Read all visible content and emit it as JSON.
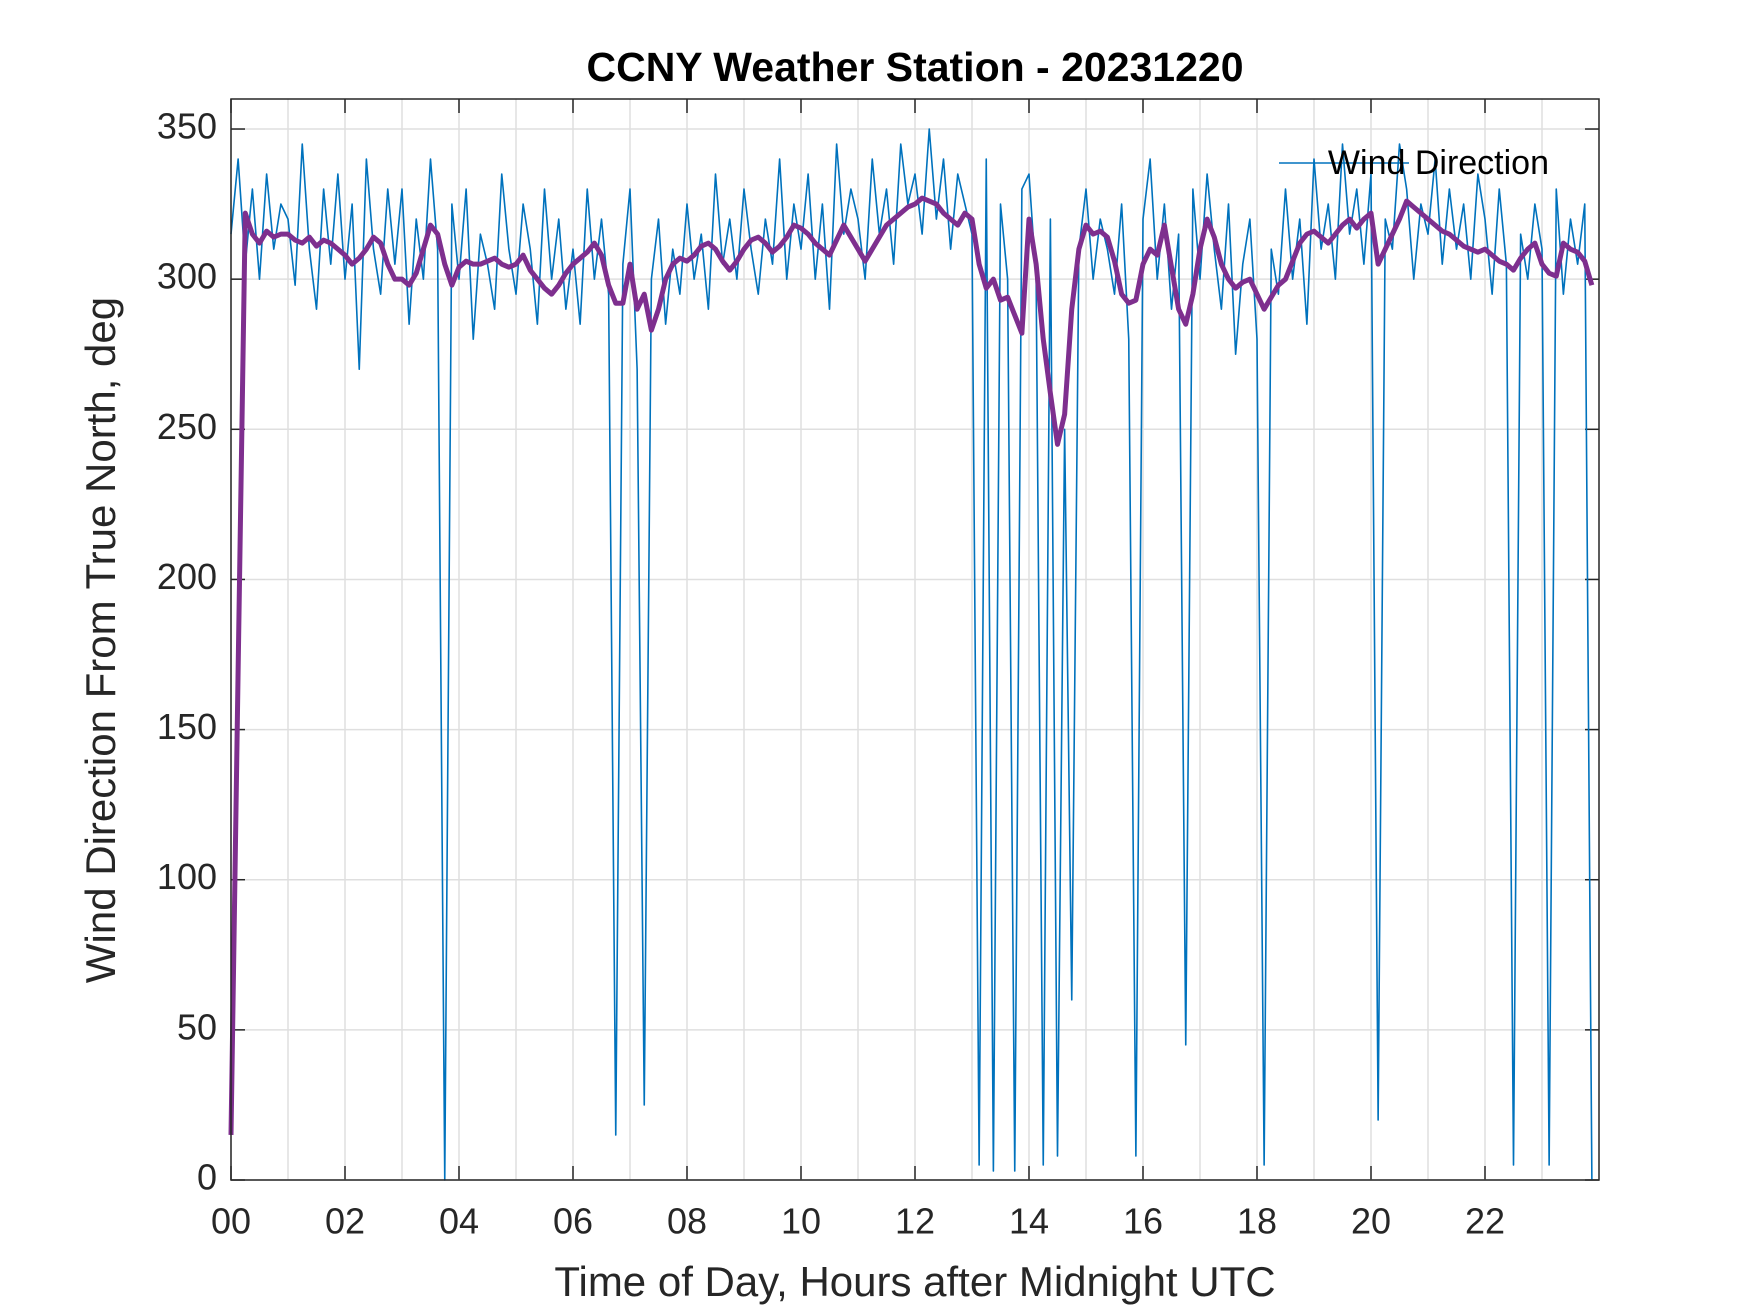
{
  "chart_data": {
    "type": "line",
    "title": "CCNY Weather Station - 20231220",
    "xlabel": "Time of Day, Hours after Midnight UTC",
    "ylabel": "Wind Direction From True North, deg",
    "xlim": [
      0,
      24
    ],
    "ylim": [
      0,
      360
    ],
    "xticks": [
      {
        "value": 0,
        "label": "00"
      },
      {
        "value": 2,
        "label": "02"
      },
      {
        "value": 4,
        "label": "04"
      },
      {
        "value": 6,
        "label": "06"
      },
      {
        "value": 8,
        "label": "08"
      },
      10,
      12,
      14,
      16,
      18,
      20,
      22
    ],
    "xminorgrid": [
      1,
      3,
      5,
      7,
      9,
      11,
      13,
      15,
      17,
      19,
      21,
      23
    ],
    "yticks": [
      0,
      50,
      100,
      150,
      200,
      250,
      300,
      350
    ],
    "grid": true,
    "legend": "northeast",
    "x": [
      0,
      0.125,
      0.25,
      0.375,
      0.5,
      0.625,
      0.75,
      0.875,
      1,
      1.125,
      1.25,
      1.375,
      1.5,
      1.625,
      1.75,
      1.875,
      2,
      2.125,
      2.25,
      2.375,
      2.5,
      2.625,
      2.75,
      2.875,
      3,
      3.125,
      3.25,
      3.375,
      3.5,
      3.625,
      3.75,
      3.875,
      4,
      4.125,
      4.25,
      4.375,
      4.5,
      4.625,
      4.75,
      4.875,
      5,
      5.125,
      5.25,
      5.375,
      5.5,
      5.625,
      5.75,
      5.875,
      6,
      6.125,
      6.25,
      6.375,
      6.5,
      6.625,
      6.75,
      6.875,
      7,
      7.125,
      7.25,
      7.375,
      7.5,
      7.625,
      7.75,
      7.875,
      8,
      8.125,
      8.25,
      8.375,
      8.5,
      8.625,
      8.75,
      8.875,
      9,
      9.125,
      9.25,
      9.375,
      9.5,
      9.625,
      9.75,
      9.875,
      10,
      10.125,
      10.25,
      10.375,
      10.5,
      10.625,
      10.75,
      10.875,
      11,
      11.125,
      11.25,
      11.375,
      11.5,
      11.625,
      11.75,
      11.875,
      12,
      12.125,
      12.25,
      12.375,
      12.5,
      12.625,
      12.75,
      12.875,
      13,
      13.125,
      13.25,
      13.375,
      13.5,
      13.625,
      13.75,
      13.875,
      14,
      14.125,
      14.25,
      14.375,
      14.5,
      14.625,
      14.75,
      14.875,
      15,
      15.125,
      15.25,
      15.375,
      15.5,
      15.625,
      15.75,
      15.875,
      16,
      16.125,
      16.25,
      16.375,
      16.5,
      16.625,
      16.75,
      16.875,
      17,
      17.125,
      17.25,
      17.375,
      17.5,
      17.625,
      17.75,
      17.875,
      18,
      18.125,
      18.25,
      18.375,
      18.5,
      18.625,
      18.75,
      18.875,
      19,
      19.125,
      19.25,
      19.375,
      19.5,
      19.625,
      19.75,
      19.875,
      20,
      20.125,
      20.25,
      20.375,
      20.5,
      20.625,
      20.75,
      20.875,
      21,
      21.125,
      21.25,
      21.375,
      21.5,
      21.625,
      21.75,
      21.875,
      22,
      22.125,
      22.25,
      22.375,
      22.5,
      22.625,
      22.75,
      22.875,
      23,
      23.125,
      23.25,
      23.375,
      23.5,
      23.625,
      23.75,
      23.875
    ],
    "series": [
      {
        "name": "Wind Direction",
        "color": "#0072bd",
        "width": 1.6,
        "values": [
          315,
          340,
          305,
          330,
          300,
          335,
          310,
          325,
          320,
          298,
          345,
          310,
          290,
          330,
          305,
          335,
          300,
          325,
          270,
          340,
          310,
          295,
          330,
          305,
          330,
          285,
          320,
          300,
          340,
          310,
          0,
          325,
          300,
          330,
          280,
          315,
          305,
          290,
          335,
          310,
          295,
          325,
          310,
          285,
          330,
          300,
          320,
          290,
          310,
          285,
          330,
          300,
          320,
          295,
          15,
          305,
          330,
          270,
          25,
          300,
          320,
          285,
          310,
          295,
          325,
          300,
          315,
          290,
          335,
          305,
          320,
          300,
          330,
          310,
          295,
          320,
          305,
          340,
          300,
          325,
          310,
          335,
          300,
          325,
          290,
          345,
          315,
          330,
          320,
          300,
          340,
          315,
          330,
          305,
          345,
          325,
          335,
          315,
          350,
          320,
          340,
          310,
          335,
          325,
          315,
          5,
          340,
          3,
          325,
          300,
          3,
          330,
          335,
          300,
          5,
          320,
          8,
          250,
          60,
          310,
          330,
          300,
          320,
          310,
          295,
          325,
          280,
          8,
          320,
          340,
          300,
          325,
          290,
          315,
          45,
          330,
          300,
          335,
          310,
          290,
          325,
          275,
          305,
          320,
          280,
          5,
          310,
          295,
          330,
          300,
          320,
          285,
          340,
          310,
          325,
          300,
          345,
          315,
          330,
          305,
          335,
          20,
          320,
          310,
          345,
          330,
          300,
          325,
          315,
          340,
          305,
          330,
          310,
          325,
          300,
          335,
          320,
          295,
          330,
          305,
          5,
          315,
          300,
          325,
          310,
          5,
          330,
          295,
          320,
          305,
          325,
          0
        ]
      },
      {
        "color": "#7e2f8e",
        "width": 5,
        "values": [
          15,
          170,
          322,
          315,
          312,
          316,
          314,
          315,
          315,
          313,
          312,
          314,
          311,
          313,
          312,
          310,
          308,
          305,
          307,
          310,
          314,
          312,
          305,
          300,
          300,
          298,
          302,
          310,
          318,
          315,
          305,
          298,
          304,
          306,
          305,
          305,
          306,
          307,
          305,
          304,
          305,
          308,
          303,
          300,
          297,
          295,
          298,
          302,
          305,
          307,
          309,
          312,
          308,
          298,
          292,
          292,
          305,
          290,
          295,
          283,
          290,
          300,
          305,
          307,
          306,
          308,
          311,
          312,
          310,
          306,
          303,
          306,
          310,
          313,
          314,
          312,
          309,
          311,
          314,
          318,
          317,
          315,
          312,
          310,
          308,
          313,
          318,
          314,
          310,
          306,
          310,
          314,
          318,
          320,
          322,
          324,
          325,
          327,
          326,
          325,
          322,
          320,
          318,
          322,
          320,
          305,
          297,
          300,
          293,
          294,
          288,
          282,
          320,
          305,
          280,
          262,
          245,
          255,
          290,
          310,
          318,
          315,
          316,
          314,
          306,
          295,
          292,
          293,
          305,
          310,
          308,
          318,
          304,
          290,
          285,
          295,
          310,
          320,
          314,
          305,
          300,
          297,
          299,
          300,
          295,
          290,
          294,
          298,
          300,
          306,
          312,
          315,
          316,
          314,
          312,
          315,
          318,
          320,
          317,
          320,
          322,
          305,
          310,
          315,
          320,
          326,
          324,
          322,
          320,
          318,
          316,
          315,
          313,
          311,
          310,
          309,
          310,
          308,
          306,
          305,
          303,
          307,
          310,
          312,
          305,
          302,
          301,
          312,
          310,
          309,
          306,
          298
        ]
      }
    ]
  }
}
